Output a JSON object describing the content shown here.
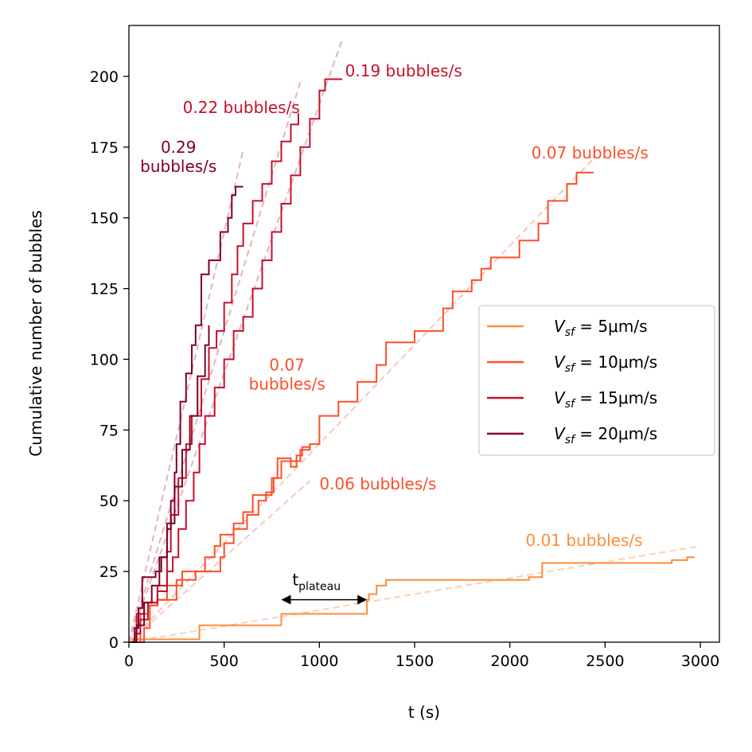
{
  "chart_data": {
    "type": "line",
    "xlabel": "t (s)",
    "ylabel": "Cumulative number of bubbles",
    "xlim": [
      0,
      3100
    ],
    "ylim": [
      0,
      218
    ],
    "xticks": [
      0,
      500,
      1000,
      1500,
      2000,
      2500,
      3000
    ],
    "yticks": [
      0,
      25,
      50,
      75,
      100,
      125,
      150,
      175,
      200
    ],
    "legend_position": "center-right",
    "legend": [
      {
        "prefix": "V",
        "sub": "sf",
        "suffix": " = 5μm/s",
        "color": "#fd8d3c"
      },
      {
        "prefix": "V",
        "sub": "sf",
        "suffix": " = 10μm/s",
        "color": "#fc4e2a"
      },
      {
        "prefix": "V",
        "sub": "sf",
        "suffix": " = 15μm/s",
        "color": "#c6102c"
      },
      {
        "prefix": "V",
        "sub": "sf",
        "suffix": " = 20μm/s",
        "color": "#800026"
      }
    ],
    "series": [
      {
        "color": "#fd8d3c",
        "width": 2,
        "points": [
          [
            0,
            0
          ],
          [
            20,
            0
          ],
          [
            20,
            1
          ],
          [
            370,
            1
          ],
          [
            370,
            6
          ],
          [
            800,
            6
          ],
          [
            800,
            10
          ],
          [
            1250,
            10
          ],
          [
            1250,
            15
          ],
          [
            1260,
            15
          ],
          [
            1260,
            17
          ],
          [
            1300,
            17
          ],
          [
            1300,
            20
          ],
          [
            1350,
            20
          ],
          [
            1350,
            22
          ],
          [
            2100,
            22
          ],
          [
            2100,
            23
          ],
          [
            2170,
            23
          ],
          [
            2170,
            28
          ],
          [
            2850,
            28
          ],
          [
            2850,
            29
          ],
          [
            2930,
            29
          ],
          [
            2930,
            30
          ],
          [
            2970,
            30
          ]
        ]
      },
      {
        "color": "#fc4e2a",
        "width": 2,
        "points": [
          [
            0,
            0
          ],
          [
            60,
            0
          ],
          [
            60,
            10
          ],
          [
            100,
            10
          ],
          [
            100,
            13
          ],
          [
            150,
            13
          ],
          [
            150,
            15
          ],
          [
            250,
            15
          ],
          [
            250,
            22
          ],
          [
            350,
            22
          ],
          [
            350,
            25
          ],
          [
            480,
            25
          ],
          [
            480,
            30
          ],
          [
            500,
            30
          ],
          [
            500,
            35
          ],
          [
            550,
            35
          ],
          [
            550,
            40
          ],
          [
            620,
            40
          ],
          [
            620,
            45
          ],
          [
            680,
            45
          ],
          [
            680,
            50
          ],
          [
            720,
            50
          ],
          [
            720,
            53
          ],
          [
            760,
            53
          ],
          [
            760,
            58
          ],
          [
            800,
            58
          ],
          [
            800,
            64
          ],
          [
            900,
            64
          ],
          [
            900,
            68
          ],
          [
            950,
            68
          ],
          [
            950,
            70
          ],
          [
            1000,
            70
          ],
          [
            1000,
            80
          ],
          [
            1100,
            80
          ],
          [
            1100,
            85
          ],
          [
            1200,
            85
          ],
          [
            1200,
            92
          ],
          [
            1300,
            92
          ],
          [
            1300,
            98
          ],
          [
            1350,
            98
          ],
          [
            1350,
            106
          ],
          [
            1500,
            106
          ],
          [
            1500,
            110
          ],
          [
            1650,
            110
          ],
          [
            1650,
            118
          ],
          [
            1700,
            118
          ],
          [
            1700,
            124
          ],
          [
            1800,
            124
          ],
          [
            1800,
            128
          ],
          [
            1850,
            128
          ],
          [
            1850,
            132
          ],
          [
            1900,
            132
          ],
          [
            1900,
            136
          ],
          [
            2050,
            136
          ],
          [
            2050,
            142
          ],
          [
            2150,
            142
          ],
          [
            2150,
            148
          ],
          [
            2200,
            148
          ],
          [
            2200,
            156
          ],
          [
            2300,
            156
          ],
          [
            2300,
            162
          ],
          [
            2350,
            162
          ],
          [
            2350,
            166
          ],
          [
            2440,
            166
          ]
        ]
      },
      {
        "color": "#fc4e2a",
        "width": 2,
        "points": [
          [
            0,
            0
          ],
          [
            80,
            0
          ],
          [
            80,
            5
          ],
          [
            110,
            5
          ],
          [
            110,
            13
          ],
          [
            150,
            13
          ],
          [
            150,
            15
          ],
          [
            200,
            15
          ],
          [
            200,
            20
          ],
          [
            280,
            20
          ],
          [
            280,
            25
          ],
          [
            400,
            25
          ],
          [
            400,
            30
          ],
          [
            450,
            30
          ],
          [
            450,
            34
          ],
          [
            480,
            34
          ],
          [
            480,
            38
          ],
          [
            550,
            38
          ],
          [
            550,
            42
          ],
          [
            600,
            42
          ],
          [
            600,
            46
          ],
          [
            650,
            46
          ],
          [
            650,
            52
          ],
          [
            750,
            52
          ],
          [
            750,
            58
          ],
          [
            780,
            58
          ],
          [
            780,
            65
          ],
          [
            850,
            65
          ],
          [
            850,
            62
          ],
          [
            880,
            62
          ],
          [
            880,
            66
          ],
          [
            910,
            66
          ],
          [
            910,
            69
          ],
          [
            950,
            69
          ]
        ]
      },
      {
        "color": "#c6102c",
        "width": 2,
        "points": [
          [
            0,
            0
          ],
          [
            40,
            0
          ],
          [
            40,
            10
          ],
          [
            80,
            10
          ],
          [
            80,
            14
          ],
          [
            150,
            14
          ],
          [
            150,
            20
          ],
          [
            200,
            20
          ],
          [
            200,
            32
          ],
          [
            220,
            32
          ],
          [
            220,
            45
          ],
          [
            260,
            45
          ],
          [
            260,
            58
          ],
          [
            300,
            58
          ],
          [
            300,
            70
          ],
          [
            330,
            70
          ],
          [
            330,
            80
          ],
          [
            380,
            80
          ],
          [
            380,
            93
          ],
          [
            420,
            93
          ],
          [
            420,
            104
          ],
          [
            460,
            104
          ],
          [
            460,
            110
          ],
          [
            500,
            110
          ],
          [
            500,
            120
          ],
          [
            540,
            120
          ],
          [
            540,
            130
          ],
          [
            570,
            130
          ],
          [
            570,
            140
          ],
          [
            600,
            140
          ],
          [
            600,
            148
          ],
          [
            650,
            148
          ],
          [
            650,
            156
          ],
          [
            700,
            156
          ],
          [
            700,
            162
          ],
          [
            750,
            162
          ],
          [
            750,
            170
          ],
          [
            800,
            170
          ],
          [
            800,
            177
          ],
          [
            850,
            177
          ],
          [
            850,
            183
          ],
          [
            890,
            183
          ],
          [
            890,
            187
          ]
        ]
      },
      {
        "color": "#c6102c",
        "width": 2,
        "points": [
          [
            0,
            0
          ],
          [
            30,
            0
          ],
          [
            30,
            3
          ],
          [
            60,
            3
          ],
          [
            60,
            8
          ],
          [
            100,
            8
          ],
          [
            100,
            14
          ],
          [
            150,
            14
          ],
          [
            150,
            18
          ],
          [
            200,
            18
          ],
          [
            200,
            25
          ],
          [
            230,
            25
          ],
          [
            230,
            30
          ],
          [
            260,
            30
          ],
          [
            260,
            40
          ],
          [
            300,
            40
          ],
          [
            300,
            50
          ],
          [
            340,
            50
          ],
          [
            340,
            60
          ],
          [
            370,
            60
          ],
          [
            370,
            70
          ],
          [
            400,
            70
          ],
          [
            400,
            80
          ],
          [
            450,
            80
          ],
          [
            450,
            90
          ],
          [
            500,
            90
          ],
          [
            500,
            100
          ],
          [
            550,
            100
          ],
          [
            550,
            110
          ],
          [
            600,
            110
          ],
          [
            600,
            115
          ],
          [
            650,
            115
          ],
          [
            650,
            125
          ],
          [
            700,
            125
          ],
          [
            700,
            135
          ],
          [
            750,
            135
          ],
          [
            750,
            145
          ],
          [
            800,
            145
          ],
          [
            800,
            155
          ],
          [
            850,
            155
          ],
          [
            850,
            165
          ],
          [
            900,
            165
          ],
          [
            900,
            175
          ],
          [
            950,
            175
          ],
          [
            950,
            185
          ],
          [
            1000,
            185
          ],
          [
            1000,
            195
          ],
          [
            1030,
            195
          ],
          [
            1030,
            199
          ],
          [
            1100,
            199
          ],
          [
            1100,
            199
          ],
          [
            1120,
            199
          ]
        ]
      },
      {
        "color": "#800026",
        "width": 2,
        "points": [
          [
            0,
            0
          ],
          [
            30,
            0
          ],
          [
            30,
            5
          ],
          [
            50,
            5
          ],
          [
            50,
            12
          ],
          [
            70,
            12
          ],
          [
            70,
            23
          ],
          [
            140,
            23
          ],
          [
            140,
            25
          ],
          [
            170,
            25
          ],
          [
            170,
            30
          ],
          [
            200,
            30
          ],
          [
            200,
            40
          ],
          [
            220,
            40
          ],
          [
            220,
            50
          ],
          [
            240,
            50
          ],
          [
            240,
            60
          ],
          [
            250,
            60
          ],
          [
            250,
            70
          ],
          [
            270,
            70
          ],
          [
            270,
            85
          ],
          [
            300,
            85
          ],
          [
            300,
            95
          ],
          [
            330,
            95
          ],
          [
            330,
            105
          ],
          [
            350,
            105
          ],
          [
            350,
            112
          ],
          [
            380,
            112
          ],
          [
            380,
            130
          ],
          [
            420,
            130
          ],
          [
            420,
            135
          ],
          [
            480,
            135
          ],
          [
            480,
            145
          ],
          [
            520,
            145
          ],
          [
            520,
            150
          ],
          [
            540,
            150
          ],
          [
            540,
            158
          ],
          [
            560,
            158
          ],
          [
            560,
            161
          ],
          [
            600,
            161
          ]
        ]
      },
      {
        "color": "#800026",
        "width": 2,
        "points": [
          [
            0,
            0
          ],
          [
            40,
            0
          ],
          [
            40,
            6
          ],
          [
            80,
            6
          ],
          [
            80,
            14
          ],
          [
            120,
            14
          ],
          [
            120,
            20
          ],
          [
            160,
            20
          ],
          [
            160,
            30
          ],
          [
            200,
            30
          ],
          [
            200,
            42
          ],
          [
            240,
            42
          ],
          [
            240,
            55
          ],
          [
            280,
            55
          ],
          [
            280,
            68
          ],
          [
            320,
            68
          ],
          [
            320,
            80
          ],
          [
            360,
            80
          ],
          [
            360,
            94
          ],
          [
            400,
            94
          ],
          [
            400,
            105
          ],
          [
            420,
            105
          ],
          [
            420,
            112
          ]
        ]
      }
    ],
    "fits": [
      {
        "color": "#fdd0b5",
        "x": [
          0,
          3000
        ],
        "y": [
          0,
          34
        ]
      },
      {
        "color": "#f9c6bd",
        "x": [
          0,
          2440
        ],
        "y": [
          0,
          171
        ]
      },
      {
        "color": "#f9c6bd",
        "x": [
          0,
          950
        ],
        "y": [
          0,
          57
        ]
      },
      {
        "color": "#e3b3bd",
        "x": [
          0,
          900
        ],
        "y": [
          0,
          198
        ]
      },
      {
        "color": "#e3b3bd",
        "x": [
          0,
          1120
        ],
        "y": [
          0,
          213
        ]
      },
      {
        "color": "#e0b5bf",
        "x": [
          0,
          600
        ],
        "y": [
          0,
          174
        ]
      }
    ],
    "rate_labels": [
      {
        "lines": [
          "0.19 bubbles/s"
        ],
        "x": 1135,
        "y": 200,
        "anchor": "start",
        "color": "#c6102c"
      },
      {
        "lines": [
          "0.22 bubbles/s"
        ],
        "x": 590,
        "y": 187,
        "anchor": "middle",
        "color": "#c6102c"
      },
      {
        "lines": [
          "0.29",
          "bubbles/s"
        ],
        "x": 260,
        "y": 173,
        "anchor": "middle",
        "color": "#800026"
      },
      {
        "lines": [
          "0.07 bubbles/s"
        ],
        "x": 2420,
        "y": 171,
        "anchor": "middle",
        "color": "#fc4e2a"
      },
      {
        "lines": [
          "0.07",
          "bubbles/s"
        ],
        "x": 830,
        "y": 96,
        "anchor": "middle",
        "color": "#fc4e2a"
      },
      {
        "lines": [
          "0.06 bubbles/s"
        ],
        "x": 1000,
        "y": 54,
        "anchor": "start",
        "color": "#fc4e2a"
      },
      {
        "lines": [
          "0.01 bubbles/s"
        ],
        "x": 2390,
        "y": 34,
        "anchor": "middle",
        "color": "#fd8d3c"
      }
    ],
    "annotation": {
      "text": "t",
      "sub": "plateau",
      "x1": 800,
      "x2": 1250,
      "y": 15
    }
  }
}
